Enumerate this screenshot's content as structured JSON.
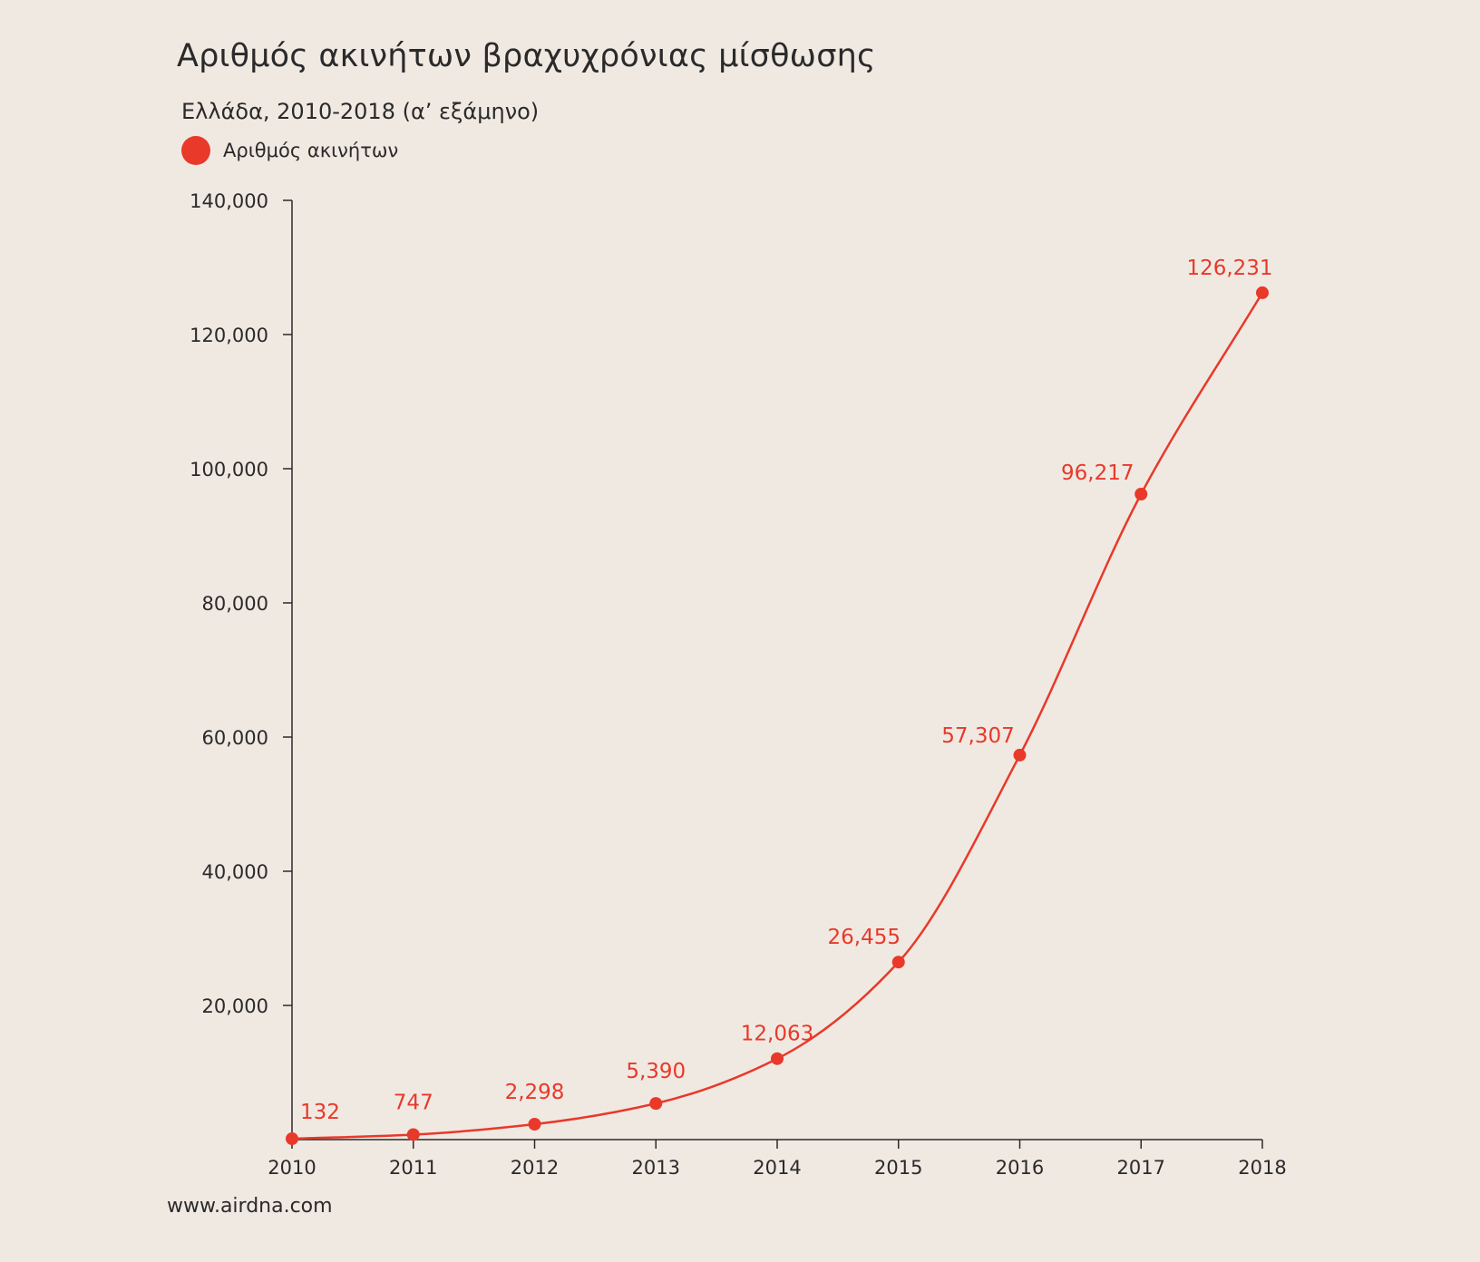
{
  "chart_data": {
    "type": "line",
    "title": "Αριθμός ακινήτων βραχυχρόνιας μίσθωσης",
    "subtitle": "Ελλάδα, 2010-2018 (α’ εξάμηνο)",
    "x": [
      "2010",
      "2011",
      "2012",
      "2013",
      "2014",
      "2015",
      "2016",
      "2017",
      "2018"
    ],
    "series": [
      {
        "name": "Αριθμός ακινήτων",
        "values": [
          132,
          747,
          2298,
          5390,
          12063,
          26455,
          57307,
          96217,
          126231
        ],
        "labels": [
          "132",
          "747",
          "2,298",
          "5,390",
          "12,063",
          "26,455",
          "57,307",
          "96,217",
          "126,231"
        ]
      }
    ],
    "ylim": [
      0,
      140000
    ],
    "yticks": [
      20000,
      40000,
      60000,
      80000,
      100000,
      120000,
      140000
    ],
    "ytick_labels": [
      "20,000",
      "40,000",
      "60,000",
      "80,000",
      "100,000",
      "120,000",
      "140,000"
    ],
    "xlabel": "",
    "ylabel": "",
    "grid": false,
    "legend_position": "top-left"
  },
  "source": "www.airdna.com",
  "colors": {
    "accent": "#e8392a",
    "label": "#e8392a",
    "axis": "#2a2a2a",
    "background": "#f0e9e2"
  }
}
